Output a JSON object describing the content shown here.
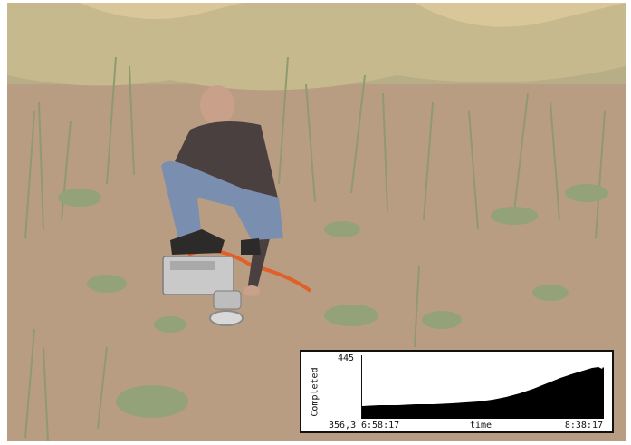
{
  "inset_chart": {
    "ylabel": "Completed",
    "ymax_label": "445",
    "ymin_label": "356,3",
    "xstart_label": "6:58:17",
    "xend_label": "8:38:17",
    "xlabel": "time"
  },
  "colors": {
    "soil": "#b89c80",
    "plant": "#8a9a6c",
    "sky_grass": "#d8c89a",
    "chart_fill": "#000000"
  }
}
